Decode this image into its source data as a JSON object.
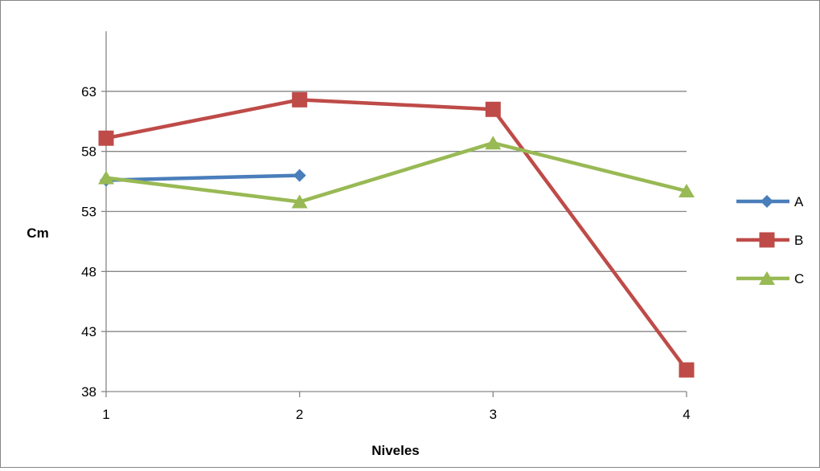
{
  "chart_data": {
    "type": "line",
    "title": "",
    "xlabel": "Niveles",
    "ylabel": "Cm",
    "categories": [
      "1",
      "2",
      "3",
      "4"
    ],
    "ylim": [
      38,
      68
    ],
    "yticks": [
      38,
      43,
      48,
      53,
      58,
      63
    ],
    "grid": true,
    "legend": "right",
    "series": [
      {
        "name": "A",
        "color": "#4a7ebb",
        "marker": "diamond",
        "values": [
          55.6,
          56.0,
          null,
          null
        ]
      },
      {
        "name": "B",
        "color": "#be4b48",
        "marker": "square",
        "values": [
          59.1,
          62.3,
          61.5,
          39.8
        ]
      },
      {
        "name": "C",
        "color": "#98b954",
        "marker": "triangle",
        "values": [
          55.8,
          53.8,
          58.7,
          54.7
        ]
      }
    ]
  }
}
